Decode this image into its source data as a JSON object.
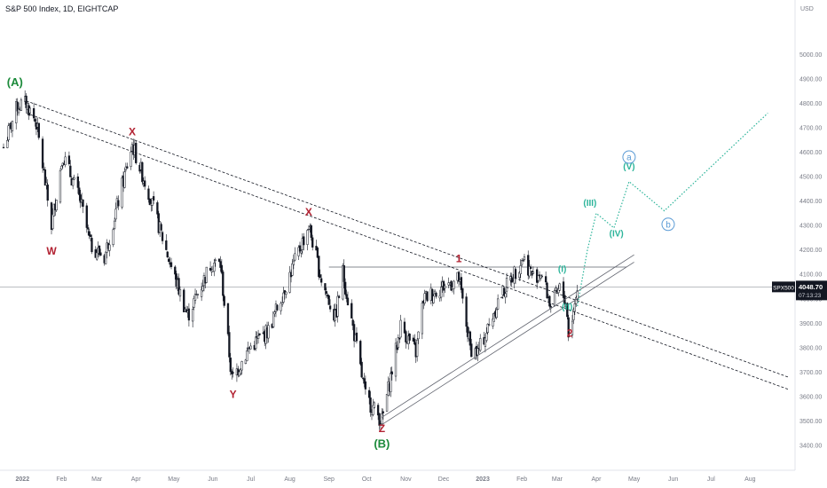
{
  "header": {
    "title": "S&P 500 Index, 1D, EIGHTCAP"
  },
  "price_tag": {
    "symbol": "SPX500",
    "price": "4048.70",
    "countdown": "07:13:23",
    "color": "#131722"
  },
  "chart_data": {
    "type": "candlestick",
    "currency": "USD",
    "x_ticks": [
      "2022",
      "Feb",
      "Mar",
      "Apr",
      "May",
      "Jun",
      "Jul",
      "Aug",
      "Sep",
      "Oct",
      "Nov",
      "Dec",
      "2023",
      "Feb",
      "Mar",
      "Apr",
      "May",
      "Jun",
      "Jul",
      "Aug"
    ],
    "y_ticks": [
      "5000.00",
      "4900.00",
      "4800.00",
      "4700.00",
      "4600.00",
      "4500.00",
      "4400.00",
      "4300.00",
      "4200.00",
      "4100.00",
      "4000.00",
      "3900.00",
      "3800.00",
      "3700.00",
      "3600.00",
      "3500.00",
      "3400.00"
    ],
    "ylim": [
      3360,
      5085
    ],
    "last_price": 4048.7,
    "price_path": [
      [
        "2021-12-17",
        4620
      ],
      [
        "2021-12-28",
        4790
      ],
      [
        "2022-01-04",
        4800
      ],
      [
        "2022-01-12",
        4720
      ],
      [
        "2022-01-24",
        4300
      ],
      [
        "2022-02-02",
        4590
      ],
      [
        "2022-02-16",
        4400
      ],
      [
        "2022-02-24",
        4220
      ],
      [
        "2022-03-07",
        4170
      ],
      [
        "2022-03-29",
        4630
      ],
      [
        "2022-04-12",
        4420
      ],
      [
        "2022-04-29",
        4130
      ],
      [
        "2022-05-12",
        3930
      ],
      [
        "2022-05-31",
        4150
      ],
      [
        "2022-06-07",
        4140
      ],
      [
        "2022-06-16",
        3670
      ],
      [
        "2022-06-30",
        3800
      ],
      [
        "2022-07-15",
        3870
      ],
      [
        "2022-08-16",
        4300
      ],
      [
        "2022-08-26",
        4080
      ],
      [
        "2022-09-06",
        3920
      ],
      [
        "2022-09-12",
        4110
      ],
      [
        "2022-09-30",
        3600
      ],
      [
        "2022-10-13",
        3500
      ],
      [
        "2022-10-28",
        3890
      ],
      [
        "2022-11-09",
        3780
      ],
      [
        "2022-11-15",
        4000
      ],
      [
        "2022-11-30",
        4050
      ],
      [
        "2022-12-13",
        4080
      ],
      [
        "2022-12-22",
        3800
      ],
      [
        "2022-12-28",
        3780
      ],
      [
        "2023-01-06",
        3890
      ],
      [
        "2023-01-13",
        3990
      ],
      [
        "2023-02-02",
        4170
      ],
      [
        "2023-02-10",
        4090
      ],
      [
        "2023-02-16",
        4110
      ],
      [
        "2023-02-24",
        3970
      ],
      [
        "2023-03-03",
        4040
      ],
      [
        "2023-03-08",
        3990
      ],
      [
        "2023-03-10",
        3860
      ],
      [
        "2023-03-13",
        3920
      ],
      [
        "2023-03-15",
        3980
      ],
      [
        "2023-03-17",
        4048
      ]
    ],
    "horizontal_line": {
      "from": "2022-09-01",
      "to": "2023-04-25",
      "price": 4130
    },
    "trend_channel_dashed": [
      {
        "from": [
          "2022-01-04",
          4810
        ],
        "to": [
          "2023-08-31",
          3680
        ]
      },
      {
        "from": [
          "2022-01-04",
          4760
        ],
        "to": [
          "2023-08-31",
          3630
        ]
      }
    ],
    "support_channel": [
      {
        "from": [
          "2022-10-13",
          3515
        ],
        "to": [
          "2023-05-01",
          4180
        ]
      },
      {
        "from": [
          "2022-10-13",
          3485
        ],
        "to": [
          "2023-05-01",
          4150
        ]
      }
    ],
    "projection": [
      [
        "2023-03-17",
        3970
      ],
      [
        "2023-03-25",
        4200
      ],
      [
        "2023-04-01",
        4350
      ],
      [
        "2023-04-15",
        4290
      ],
      [
        "2023-04-27",
        4480
      ],
      [
        "2023-05-25",
        4360
      ],
      [
        "2023-08-15",
        4760
      ]
    ],
    "wave_labels": [
      {
        "text": "(A)",
        "date": "2021-12-26",
        "price": 4870,
        "color": "#1b8a3a"
      },
      {
        "text": "W",
        "date": "2022-01-24",
        "price": 4180,
        "color": "#b22232"
      },
      {
        "text": "X",
        "date": "2022-03-29",
        "price": 4670,
        "color": "#b22232"
      },
      {
        "text": "Y",
        "date": "2022-06-17",
        "price": 3595,
        "color": "#b22232"
      },
      {
        "text": "X",
        "date": "2022-08-16",
        "price": 4340,
        "color": "#b22232"
      },
      {
        "text": "Z",
        "date": "2022-10-13",
        "price": 3455,
        "color": "#b22232"
      },
      {
        "text": "(B)",
        "date": "2022-10-13",
        "price": 3390,
        "color": "#1b8a3a"
      },
      {
        "text": "1",
        "date": "2022-12-13",
        "price": 4150,
        "color": "#b22232"
      },
      {
        "text": "2",
        "date": "2023-03-11",
        "price": 3845,
        "color": "#b22232"
      },
      {
        "text": "(I)",
        "date": "2023-03-05",
        "price": 4110,
        "color": "#2cb49a"
      },
      {
        "text": "(II)",
        "date": "2023-03-09",
        "price": 3955,
        "color": "#2cb49a"
      },
      {
        "text": "(III)",
        "date": "2023-03-27",
        "price": 4380,
        "color": "#2cb49a"
      },
      {
        "text": "(IV)",
        "date": "2023-04-17",
        "price": 4255,
        "color": "#2cb49a"
      },
      {
        "text": "(V)",
        "date": "2023-04-27",
        "price": 4530,
        "color": "#2cb49a"
      }
    ],
    "circled_labels": [
      {
        "text": "a",
        "date": "2023-04-27",
        "price": 4580,
        "color": "#5b9bd5"
      },
      {
        "text": "b",
        "date": "2023-05-28",
        "price": 4305,
        "color": "#5b9bd5"
      }
    ]
  }
}
